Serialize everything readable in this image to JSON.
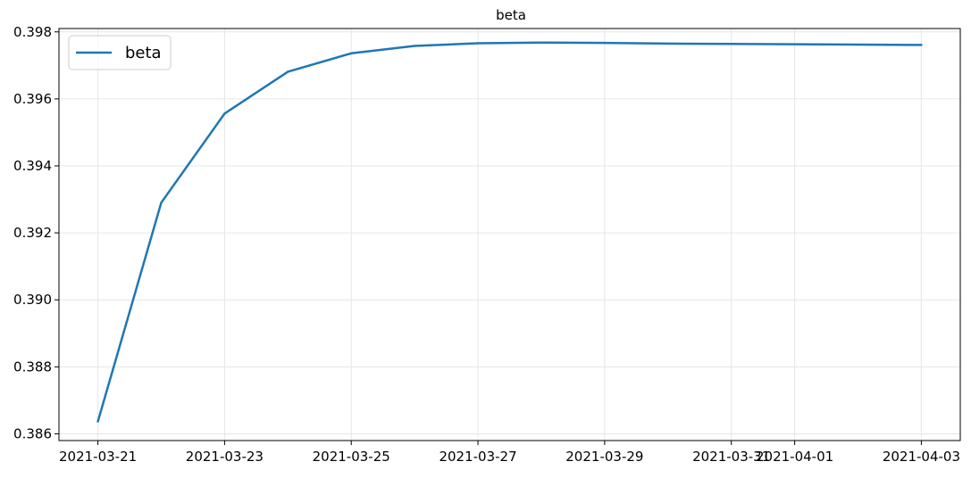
{
  "chart_data": {
    "type": "line",
    "title": "beta",
    "xlabel": "",
    "ylabel": "",
    "x": [
      "2021-03-21",
      "2021-03-22",
      "2021-03-23",
      "2021-03-24",
      "2021-03-25",
      "2021-03-26",
      "2021-03-27",
      "2021-03-28",
      "2021-03-29",
      "2021-03-30",
      "2021-03-31",
      "2021-04-01",
      "2021-04-02",
      "2021-04-03"
    ],
    "series": [
      {
        "name": "beta",
        "color": "#1f77b4",
        "values": [
          0.38637,
          0.3929,
          0.39556,
          0.39681,
          0.39736,
          0.39758,
          0.39766,
          0.39768,
          0.39767,
          0.39765,
          0.39764,
          0.39763,
          0.39762,
          0.39761
        ]
      }
    ],
    "xlim": [
      "2021-03-20T09:15",
      "2021-04-03T14:45"
    ],
    "ylim": [
      0.3858,
      0.3981
    ],
    "x_ticks": [
      "2021-03-21",
      "2021-03-23",
      "2021-03-25",
      "2021-03-27",
      "2021-03-29",
      "2021-03-31",
      "2021-04-01",
      "2021-04-03"
    ],
    "y_ticks": [
      "0.386",
      "0.388",
      "0.390",
      "0.392",
      "0.394",
      "0.396",
      "0.398"
    ],
    "grid": true,
    "legend": {
      "placement": "top-left",
      "entries": [
        "beta"
      ]
    }
  }
}
